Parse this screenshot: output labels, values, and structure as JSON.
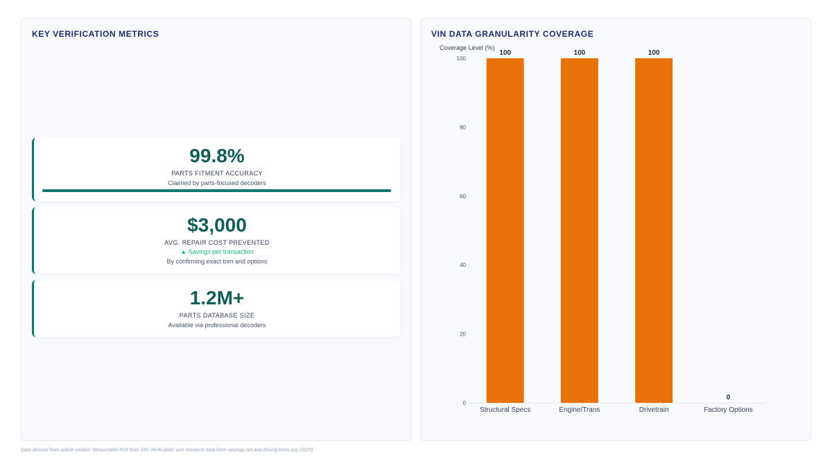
{
  "left_panel": {
    "title": "KEY VERIFICATION METRICS",
    "cards": [
      {
        "value": "99.8%",
        "label": "PARTS FITMENT ACCURACY",
        "note": "Claimed by parts-focused decoders",
        "progress_percent": 99.8
      },
      {
        "value": "$3,000",
        "label": "AVG. REPAIR COST PREVENTED",
        "trend": "▲ Savings per transaction",
        "note": "By confirming exact trim and options"
      },
      {
        "value": "1.2M+",
        "label": "PARTS DATABASE SIZE",
        "note": "Available via professional decoders"
      }
    ]
  },
  "right_panel": {
    "title": "VIN DATA GRANULARITY COVERAGE"
  },
  "chart_data": {
    "type": "bar",
    "title": "VIN DATA GRANULARITY COVERAGE",
    "ylabel": "Coverage Level (%)",
    "xlabel": "",
    "categories": [
      "Structural Specs",
      "Engine/Trans",
      "Drivetrain",
      "Factory Options"
    ],
    "values": [
      100,
      100,
      100,
      0
    ],
    "ylim": [
      0,
      100
    ],
    "yticks": [
      0,
      20,
      40,
      60,
      80,
      100
    ],
    "data_labels": true,
    "grid": false,
    "bar_color": "#e8710a"
  },
  "footer": {
    "source": "Data derived from article section 'Measurable ROI from VIN Verification' and research data from vinsnap.net and driving-tests.org (2025)."
  }
}
